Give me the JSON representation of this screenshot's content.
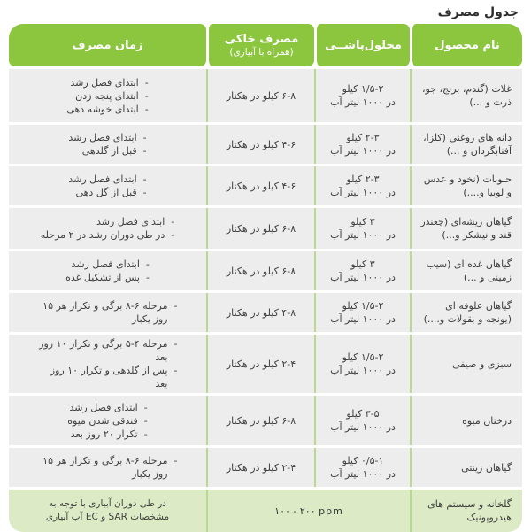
{
  "title": "جدول مصرف",
  "colors": {
    "header_green": "#8CC63F",
    "row_gray": "#EDEDED",
    "footer_green": "#DCEBC5",
    "divider_green": "#B9DA8E"
  },
  "table": {
    "headers": {
      "product": "نام محصول",
      "spray": "محلول‌پاشــی",
      "soil_l1": "مصرف خاکی",
      "soil_l2": "(همراه با آبیاری)",
      "time": "زمان مصرف"
    },
    "rows": [
      {
        "product": "غلات (گندم، برنج، جو، ذرت و ...)",
        "spray_l1": "۱/۵-۲ کیلو",
        "spray_l2": "در ۱۰۰۰ لیتر آب",
        "soil": "۶-۸ کیلو در هکتار",
        "time": [
          "ابتدای فصل رشد",
          "ابتدای پنجه زدن",
          "ابتدای خوشه دهی"
        ]
      },
      {
        "product": "دانه های روغنی (کلزا، آفتابگردان و ...)",
        "spray_l1": "۲-۳ کیلو",
        "spray_l2": "در ۱۰۰۰ لیتر آب",
        "soil": "۴-۶ کیلو در هکتار",
        "time": [
          "ابتدای فصل رشد",
          "قبل از گلدهی"
        ]
      },
      {
        "product": "حبوبات (نخود و عدس و لوبیا و....)",
        "spray_l1": "۲-۳ کیلو",
        "spray_l2": "در ۱۰۰۰ لیتر آب",
        "soil": "۴-۶ کیلو در هکتار",
        "time": [
          "ابتدای فصل رشد",
          "قبل از گل دهی"
        ]
      },
      {
        "product": "گیاهان ریشه‌ای (چغندر قند و نیشکر و...)",
        "spray_l1": "۳ کیلو",
        "spray_l2": "در ۱۰۰۰ لیتر آب",
        "soil": "۶-۸ کیلو در هکتار",
        "time": [
          "ابتدای فصل رشد",
          "در طی دوران رشد در ۲ مرحله"
        ]
      },
      {
        "product": "گیاهان غده ای (سیب زمینی و ...)",
        "spray_l1": "۳ کیلو",
        "spray_l2": "در ۱۰۰۰ لیتر آب",
        "soil": "۶-۸ کیلو در هکتار",
        "time": [
          "ابتدای فصل رشد",
          "پس از تشکیل غده"
        ]
      },
      {
        "product": "گیاهان علوفه ای (یونجه و بقولات و....)",
        "spray_l1": "۱/۵-۲ کیلو",
        "spray_l2": "در ۱۰۰۰ لیتر آب",
        "soil": "۴-۸ کیلو در هکتار",
        "time": [
          "مرحله ۶-۸ برگی و تکرار هر ۱۵ روز یکبار"
        ]
      },
      {
        "product": "سبزی و صیفی",
        "spray_l1": "۱/۵-۲ کیلو",
        "spray_l2": "در ۱۰۰۰ لیتر آب",
        "soil": "۲-۴ کیلو در هکتار",
        "time": [
          "مرحله ۴-۵ برگی و تکرار ۱۰ روز بعد",
          "پس از گلدهی و تکرار ۱۰ روز بعد"
        ]
      },
      {
        "product": "درختان میوه",
        "spray_l1": "۳-۵ کیلو",
        "spray_l2": "در ۱۰۰۰ لیتر آب",
        "soil": "۶-۸ کیلو در هکتار",
        "time": [
          "ابتدای فصل رشد",
          "فندقی شدن میوه",
          "تکرار ۲۰ روز بعد"
        ]
      },
      {
        "product": "گیاهان زینتی",
        "spray_l1": "۰/۵-۱ کیلو",
        "spray_l2": "در ۱۰۰۰ لیتر آب",
        "soil": "۲-۴ کیلو در هکتار",
        "time": [
          "مرحله ۶-۸ برگی و تکرار هر ۱۵ روز یکبار"
        ]
      }
    ],
    "footer": {
      "product": "گلخانه و سیستم های هیدروپونیک",
      "value": "۱۰۰ ‎- ۲۰۰ ppm",
      "time_note": "در طی دوران آبیاری با توجه به مشخصات SAR و EC آب آبیاری"
    }
  }
}
